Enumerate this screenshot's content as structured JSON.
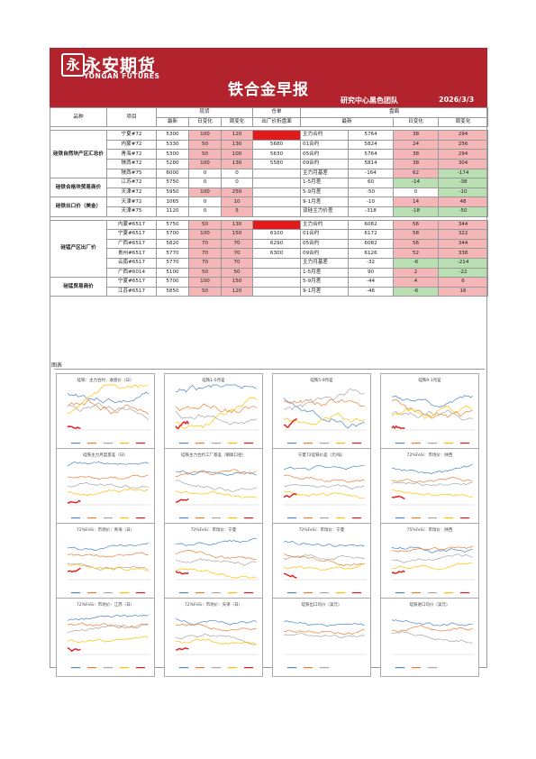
{
  "header": {
    "logo_mark": "永",
    "logo_cn": "永安期货",
    "logo_en": "YONGAN FUTURES",
    "title": "铁合金早报",
    "team": "研究中心黑色团队",
    "date": "2026/3/3"
  },
  "table": {
    "head": {
      "variety": "品种",
      "item": "项目",
      "spot": "现货",
      "receipt": "仓单",
      "futures": "盘面",
      "latest": "最新",
      "daily_change": "日变化",
      "weekly_change": "周变化",
      "ex_factory_discount": "出厂价折盘面"
    },
    "block1": [
      {
        "group": "硅铁自然块产区汇总价",
        "item": "宁夏#72",
        "latest": "5300",
        "day": "100",
        "week": "120",
        "receipt": "",
        "rcolor": "red",
        "contract": "主力合约",
        "f_latest": "5764",
        "f_day": "38",
        "f_week": "294",
        "dc": "pink",
        "wc": "pink",
        "fdc": "pink",
        "fwc": "pink"
      },
      {
        "group": "",
        "item": "内蒙#72",
        "latest": "5330",
        "day": "50",
        "week": "130",
        "receipt": "5680",
        "rcolor": "",
        "contract": "01合约",
        "f_latest": "5824",
        "f_day": "24",
        "f_week": "256",
        "dc": "pink",
        "wc": "pink",
        "fdc": "pink",
        "fwc": "pink"
      },
      {
        "group": "",
        "item": "青海#72",
        "latest": "5300",
        "day": "50",
        "week": "100",
        "receipt": "5630",
        "rcolor": "",
        "contract": "05合约",
        "f_latest": "5764",
        "f_day": "38",
        "f_week": "294",
        "dc": "pink",
        "wc": "pink",
        "fdc": "pink",
        "fwc": "pink"
      },
      {
        "group": "",
        "item": "陕西#72",
        "latest": "5280",
        "day": "100",
        "week": "130",
        "receipt": "5580",
        "rcolor": "",
        "contract": "09合约",
        "f_latest": "5814",
        "f_day": "38",
        "f_week": "304",
        "dc": "pink",
        "wc": "pink",
        "fdc": "pink",
        "fwc": "pink"
      },
      {
        "group": "",
        "item": "陕西#75",
        "latest": "6000",
        "day": "0",
        "week": "0",
        "receipt": "",
        "rcolor": "",
        "contract": "主力月基差",
        "f_latest": "-164",
        "f_day": "62",
        "f_week": "-174",
        "dc": "",
        "wc": "",
        "fdc": "pink",
        "fwc": "green"
      },
      {
        "group": "硅铁合格块贸易商价",
        "item": "江苏#72",
        "latest": "5750",
        "day": "0",
        "week": "0",
        "receipt": "",
        "rcolor": "",
        "contract": "1-5月差",
        "f_latest": "60",
        "f_day": "-14",
        "f_week": "-38",
        "dc": "",
        "wc": "",
        "fdc": "green",
        "fwc": "green"
      },
      {
        "group": "",
        "item": "天津#72",
        "latest": "5950",
        "day": "100",
        "week": "250",
        "receipt": "",
        "rcolor": "",
        "contract": "5-9月差",
        "f_latest": "-50",
        "f_day": "0",
        "f_week": "-10",
        "dc": "pink",
        "wc": "pink",
        "fdc": "",
        "fwc": "green"
      },
      {
        "group": "硅铁出口价（美金）",
        "item": "天津#72",
        "latest": "1065",
        "day": "0",
        "week": "10",
        "receipt": "",
        "rcolor": "",
        "contract": "9-1月差",
        "f_latest": "-10",
        "f_day": "14",
        "f_week": "48",
        "dc": "",
        "wc": "pink",
        "fdc": "pink",
        "fwc": "pink"
      },
      {
        "group": "",
        "item": "天津#75",
        "latest": "1120",
        "day": "0",
        "week": "5",
        "receipt": "",
        "rcolor": "",
        "contract": "双硅主力价差",
        "f_latest": "-318",
        "f_day": "-18",
        "f_week": "-50",
        "dc": "",
        "wc": "pink",
        "fdc": "green",
        "fwc": "green"
      }
    ],
    "block2": [
      {
        "group": "硅锰产区出厂价",
        "item": "内蒙#6517",
        "latest": "5750",
        "day": "50",
        "week": "130",
        "receipt": "",
        "rcolor": "red",
        "contract": "主力合约",
        "f_latest": "6082",
        "f_day": "56",
        "f_week": "344",
        "dc": "pink",
        "wc": "pink",
        "fdc": "pink",
        "fwc": "pink"
      },
      {
        "group": "",
        "item": "宁夏#6517",
        "latest": "5700",
        "day": "100",
        "week": "150",
        "receipt": "6100",
        "rcolor": "",
        "contract": "01合约",
        "f_latest": "6172",
        "f_day": "58",
        "f_week": "322",
        "dc": "pink",
        "wc": "pink",
        "fdc": "pink",
        "fwc": "pink"
      },
      {
        "group": "",
        "item": "广西#6517",
        "latest": "5820",
        "day": "70",
        "week": "70",
        "receipt": "6290",
        "rcolor": "",
        "contract": "05合约",
        "f_latest": "6082",
        "f_day": "56",
        "f_week": "344",
        "dc": "pink",
        "wc": "pink",
        "fdc": "pink",
        "fwc": "pink"
      },
      {
        "group": "",
        "item": "贵州#6517",
        "latest": "5770",
        "day": "70",
        "week": "70",
        "receipt": "6300",
        "rcolor": "",
        "contract": "09合约",
        "f_latest": "6126",
        "f_day": "52",
        "f_week": "338",
        "dc": "pink",
        "wc": "pink",
        "fdc": "pink",
        "fwc": "pink"
      },
      {
        "group": "",
        "item": "云南#6517",
        "latest": "5770",
        "day": "70",
        "week": "70",
        "receipt": "",
        "rcolor": "",
        "contract": "主力月基差",
        "f_latest": "-32",
        "f_day": "-6",
        "f_week": "-214",
        "dc": "pink",
        "wc": "pink",
        "fdc": "green",
        "fwc": "green"
      },
      {
        "group": "",
        "item": "广西#6014",
        "latest": "5100",
        "day": "50",
        "week": "50",
        "receipt": "",
        "rcolor": "",
        "contract": "1-5月差",
        "f_latest": "90",
        "f_day": "2",
        "f_week": "-22",
        "dc": "pink",
        "wc": "pink",
        "fdc": "pink",
        "fwc": "green"
      },
      {
        "group": "硅锰贸易商价",
        "item": "宁夏#6517",
        "latest": "5700",
        "day": "100",
        "week": "150",
        "receipt": "",
        "rcolor": "",
        "contract": "5-9月差",
        "f_latest": "-44",
        "f_day": "4",
        "f_week": "6",
        "dc": "pink",
        "wc": "pink",
        "fdc": "pink",
        "fwc": "pink"
      },
      {
        "group": "",
        "item": "江苏#6517",
        "latest": "5850",
        "day": "50",
        "week": "120",
        "receipt": "",
        "rcolor": "",
        "contract": "9-1月差",
        "f_latest": "-46",
        "f_day": "-6",
        "f_week": "16",
        "dc": "pink",
        "wc": "pink",
        "fdc": "green",
        "fwc": "pink"
      }
    ]
  },
  "charts_section_label": "图表",
  "charts": [
    {
      "title": "硅铁：主力合约：收盘价（日）"
    },
    {
      "title": "硅铁1-5月差"
    },
    {
      "title": "硅铁5-9月差"
    },
    {
      "title": "硅铁9-1月差"
    },
    {
      "title": "硅铁主力月度基差（日）"
    },
    {
      "title": "硅铁主力合约工厂基差（钢联口径）"
    },
    {
      "title": "宁夏72硅铁价差（元/吨）"
    },
    {
      "title": "72%FeSi：市场价：陕西"
    },
    {
      "title": "72%FeSi：市场价：青海（日）"
    },
    {
      "title": "72%FeSi：市场价：宁夏"
    },
    {
      "title": "72%FeSi：市场价：宁夏"
    },
    {
      "title": "75%FeSi：市场价：陕西"
    },
    {
      "title": "72%FeSi：市场价：江苏（日）"
    },
    {
      "title": "72%FeSi：市场价：天津（日）"
    },
    {
      "title": "硅铁出口均价（美元）"
    },
    {
      "title": "硅铁进口均价（美元）"
    }
  ]
}
